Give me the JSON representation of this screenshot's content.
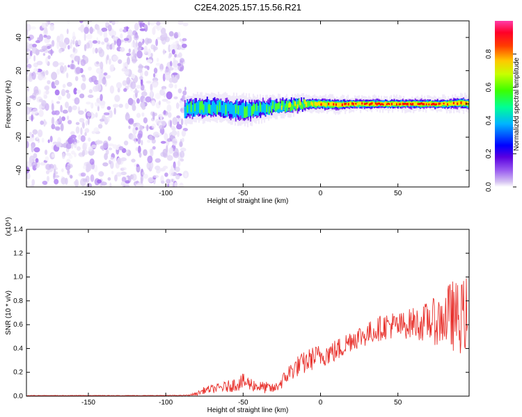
{
  "title": "C2E4.2025.157.15.56.R21",
  "colors": {
    "snr_line": "#e8332e",
    "spectrogram_noise": "#9a5cf0",
    "background": "#ffffff",
    "axis": "#000000"
  },
  "chart_data": [
    {
      "type": "heatmap",
      "title": "C2E4.2025.157.15.56.R21",
      "xlabel": "Height of straight line (km)",
      "ylabel": "Frequency (Hz)",
      "xlim": [
        -190,
        96
      ],
      "ylim": [
        -50,
        50
      ],
      "xticks": [
        -150,
        -100,
        -50,
        0,
        50
      ],
      "yticks": [
        -40,
        -20,
        0,
        20,
        40
      ],
      "colorbar": {
        "label": "Normalized spectral amplitude",
        "range": [
          0,
          1
        ],
        "ticks": [
          "0.0",
          "0.2",
          "0.4",
          "0.6",
          "0.8"
        ],
        "colormap": [
          "#ffffff",
          "#d6c4f2",
          "#9a5cf0",
          "#6a00e8",
          "#0000ff",
          "#00c8ff",
          "#00ff80",
          "#80ff00",
          "#ffff00",
          "#ff8000",
          "#ff0000",
          "#ff3ca8"
        ]
      },
      "regions": [
        {
          "name": "noise",
          "x_range": [
            -190,
            -87
          ],
          "freq_range": [
            -50,
            50
          ],
          "amplitude": 0.1
        },
        {
          "name": "signal",
          "x_range": [
            -88,
            96
          ],
          "center_freq_hz": 0,
          "half_width_hz": 4,
          "peak_amplitude": 1.0
        }
      ],
      "signal_track": [
        {
          "x": -88,
          "freq": -3.5,
          "width": 5,
          "amp": 0.55
        },
        {
          "x": -80,
          "freq": -2.5,
          "width": 5,
          "amp": 0.6
        },
        {
          "x": -70,
          "freq": -2,
          "width": 5,
          "amp": 0.55
        },
        {
          "x": -60,
          "freq": -3,
          "width": 5,
          "amp": 0.55
        },
        {
          "x": -50,
          "freq": -4,
          "width": 5.5,
          "amp": 0.55
        },
        {
          "x": -40,
          "freq": -3,
          "width": 4.5,
          "amp": 0.6
        },
        {
          "x": -30,
          "freq": -2,
          "width": 4,
          "amp": 0.65
        },
        {
          "x": -20,
          "freq": -1,
          "width": 3.5,
          "amp": 0.7
        },
        {
          "x": -10,
          "freq": 0,
          "width": 3,
          "amp": 0.75
        },
        {
          "x": 0,
          "freq": 0,
          "width": 3,
          "amp": 0.8
        },
        {
          "x": 10,
          "freq": -0.5,
          "width": 3,
          "amp": 0.85
        },
        {
          "x": 20,
          "freq": 0,
          "width": 2.5,
          "amp": 0.9
        },
        {
          "x": 30,
          "freq": 0,
          "width": 2.5,
          "amp": 0.95
        },
        {
          "x": 40,
          "freq": 0,
          "width": 2.5,
          "amp": 0.95
        },
        {
          "x": 50,
          "freq": 0,
          "width": 2.5,
          "amp": 0.95
        },
        {
          "x": 60,
          "freq": 0,
          "width": 2.5,
          "amp": 0.95
        },
        {
          "x": 70,
          "freq": 0,
          "width": 2.5,
          "amp": 0.95
        },
        {
          "x": 80,
          "freq": 0,
          "width": 2.5,
          "amp": 0.9
        },
        {
          "x": 90,
          "freq": 0.5,
          "width": 3,
          "amp": 0.85
        },
        {
          "x": 96,
          "freq": 0,
          "width": 3,
          "amp": 0.8
        }
      ]
    },
    {
      "type": "line",
      "title": "",
      "xlabel": "Height of straight line (km)",
      "ylabel": "SNR (10 * v/v)",
      "y_multiplier": "(x10⁴)",
      "xlim": [
        -190,
        96
      ],
      "ylim": [
        0,
        1.4
      ],
      "xticks": [
        -150,
        -100,
        -50,
        0,
        50
      ],
      "yticks": [
        "0.0",
        "0.2",
        "0.4",
        "0.6",
        "0.8",
        "1.0",
        "1.2",
        "1.4"
      ],
      "series": [
        {
          "color": "#e8332e",
          "x": [
            -190,
            -170,
            -150,
            -130,
            -110,
            -90,
            -85,
            -80,
            -75,
            -70,
            -65,
            -60,
            -55,
            -50,
            -45,
            -40,
            -35,
            -30,
            -25,
            -20,
            -15,
            -10,
            -5,
            0,
            5,
            10,
            15,
            20,
            25,
            30,
            35,
            40,
            45,
            50,
            55,
            60,
            65,
            70,
            75,
            80,
            85,
            90,
            95
          ],
          "y": [
            0.005,
            0.005,
            0.005,
            0.005,
            0.005,
            0.006,
            0.008,
            0.02,
            0.05,
            0.06,
            0.07,
            0.08,
            0.1,
            0.12,
            0.1,
            0.08,
            0.07,
            0.06,
            0.12,
            0.2,
            0.25,
            0.28,
            0.32,
            0.34,
            0.36,
            0.38,
            0.42,
            0.48,
            0.5,
            0.52,
            0.55,
            0.58,
            0.6,
            0.58,
            0.6,
            0.62,
            0.6,
            0.64,
            0.62,
            0.66,
            0.68,
            0.65,
            0.7
          ],
          "noise_amplitude": [
            0.002,
            0.002,
            0.002,
            0.002,
            0.002,
            0.003,
            0.005,
            0.015,
            0.03,
            0.035,
            0.04,
            0.05,
            0.06,
            0.07,
            0.06,
            0.05,
            0.05,
            0.04,
            0.06,
            0.08,
            0.09,
            0.1,
            0.1,
            0.1,
            0.1,
            0.1,
            0.1,
            0.1,
            0.1,
            0.1,
            0.1,
            0.11,
            0.12,
            0.12,
            0.12,
            0.13,
            0.14,
            0.18,
            0.2,
            0.25,
            0.3,
            0.3,
            0.32
          ]
        }
      ]
    }
  ]
}
